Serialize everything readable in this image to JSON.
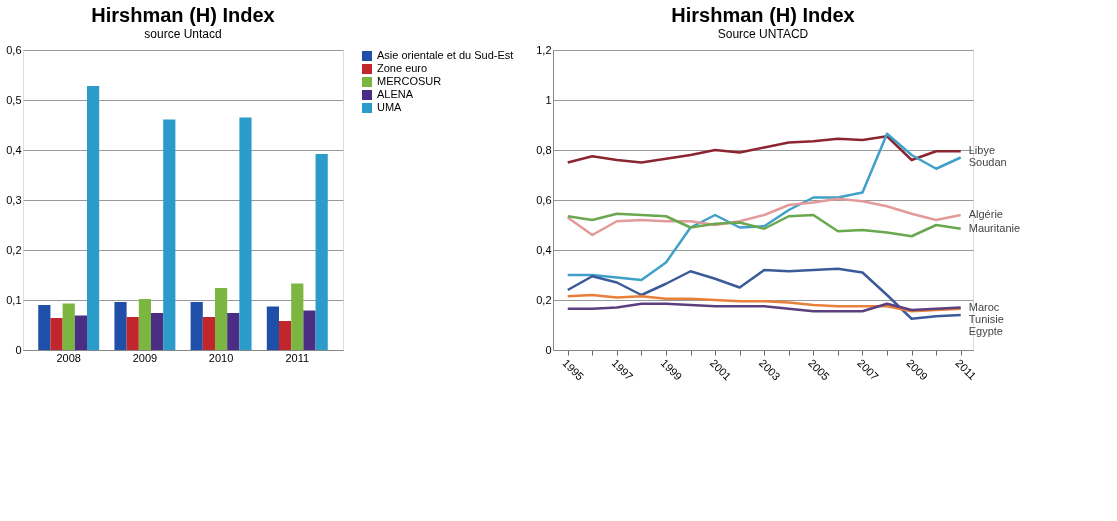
{
  "chart_data": [
    {
      "type": "bar",
      "title": "Hirshman (H) Index",
      "subtitle": "source Untacd",
      "categories": [
        "2008",
        "2009",
        "2010",
        "2011"
      ],
      "series": [
        {
          "name": "Asie orientale et du Sud-Est",
          "color": "#1f4fa8",
          "values": [
            0.09,
            0.096,
            0.096,
            0.087
          ]
        },
        {
          "name": "Zone euro",
          "color": "#c0262c",
          "values": [
            0.064,
            0.066,
            0.066,
            0.058
          ]
        },
        {
          "name": "MERCOSUR",
          "color": "#7ab640",
          "values": [
            0.093,
            0.102,
            0.124,
            0.133
          ]
        },
        {
          "name": "ALENA",
          "color": "#4b2e83",
          "values": [
            0.069,
            0.074,
            0.074,
            0.079
          ]
        },
        {
          "name": "UMA",
          "color": "#2b9cc9",
          "values": [
            0.528,
            0.461,
            0.465,
            0.392
          ]
        }
      ],
      "ylim": [
        0,
        0.6
      ],
      "yticks": [
        0,
        {
          "value": 0.1,
          "label": "0,1"
        },
        {
          "value": 0.2,
          "label": "0,2"
        },
        {
          "value": 0.3,
          "label": "0,3"
        },
        {
          "value": 0.4,
          "label": "0,4"
        },
        {
          "value": 0.5,
          "label": "0,5"
        },
        {
          "value": 0.6,
          "label": "0,6"
        }
      ],
      "grid": "y",
      "legend": "right"
    },
    {
      "type": "line",
      "title": "Hirshman (H) Index",
      "subtitle": "Source UNTACD",
      "x": [
        1995,
        1996,
        1997,
        1998,
        1999,
        2000,
        2001,
        2002,
        2003,
        2004,
        2005,
        2006,
        2007,
        2008,
        2009,
        2010,
        2011
      ],
      "series": [
        {
          "name": "Libye",
          "color": "#8b2530",
          "values": [
            0.75,
            0.775,
            0.76,
            0.75,
            0.765,
            0.78,
            0.8,
            0.79,
            0.81,
            0.83,
            0.835,
            0.845,
            0.84,
            0.855,
            0.76,
            0.795,
            0.795
          ]
        },
        {
          "name": "Soudan",
          "color": "#3fa0c8",
          "values": [
            0.3,
            0.3,
            0.29,
            0.28,
            0.35,
            0.49,
            0.54,
            0.49,
            0.495,
            0.56,
            0.61,
            0.61,
            0.63,
            0.865,
            0.78,
            0.725,
            0.77
          ]
        },
        {
          "name": "Algérie",
          "color": "#e39a9a",
          "values": [
            0.53,
            0.46,
            0.515,
            0.52,
            0.515,
            0.515,
            0.5,
            0.515,
            0.54,
            0.58,
            0.59,
            0.605,
            0.595,
            0.575,
            0.545,
            0.52,
            0.54
          ]
        },
        {
          "name": "Mauritanie",
          "color": "#6aa84f",
          "values": [
            0.535,
            0.52,
            0.545,
            0.54,
            0.535,
            0.49,
            0.505,
            0.51,
            0.485,
            0.535,
            0.54,
            0.475,
            0.48,
            0.47,
            0.455,
            0.5,
            0.485
          ]
        },
        {
          "name": "Egypte",
          "color": "#3b5a9a",
          "values": [
            0.24,
            0.295,
            0.27,
            0.22,
            0.265,
            0.315,
            0.285,
            0.25,
            0.32,
            0.315,
            0.32,
            0.325,
            0.31,
            0.22,
            0.125,
            0.135,
            0.14
          ]
        },
        {
          "name": "Tunisie",
          "color": "#e8803a",
          "values": [
            0.215,
            0.22,
            0.21,
            0.215,
            0.205,
            0.205,
            0.2,
            0.195,
            0.195,
            0.19,
            0.18,
            0.175,
            0.175,
            0.175,
            0.155,
            0.16,
            0.165
          ]
        },
        {
          "name": "Maroc",
          "color": "#5b3f7e",
          "values": [
            0.165,
            0.165,
            0.17,
            0.185,
            0.185,
            0.18,
            0.175,
            0.175,
            0.175,
            0.165,
            0.155,
            0.155,
            0.155,
            0.185,
            0.16,
            0.165,
            0.17
          ]
        }
      ],
      "xlim": [
        1994.4,
        2011.5
      ],
      "xticks": [
        1995,
        {
          "value": 1996,
          "label": null
        },
        1997,
        {
          "value": 1998,
          "label": null
        },
        1999,
        {
          "value": 2000,
          "label": null
        },
        2001,
        {
          "value": 2002,
          "label": null
        },
        2003,
        {
          "value": 2004,
          "label": null
        },
        2005,
        {
          "value": 2006,
          "label": null
        },
        2007,
        {
          "value": 2008,
          "label": null
        },
        2009,
        {
          "value": 2010,
          "label": null
        },
        2011
      ],
      "ylim": [
        0,
        1.2
      ],
      "yticks": [
        0,
        {
          "value": 0.2,
          "label": "0,2"
        },
        {
          "value": 0.4,
          "label": "0,4"
        },
        {
          "value": 0.6,
          "label": "0,6"
        },
        {
          "value": 0.8,
          "label": "0,8"
        },
        1,
        {
          "value": 1.2,
          "label": "1,2"
        }
      ],
      "grid": "y",
      "legend": false
    }
  ]
}
